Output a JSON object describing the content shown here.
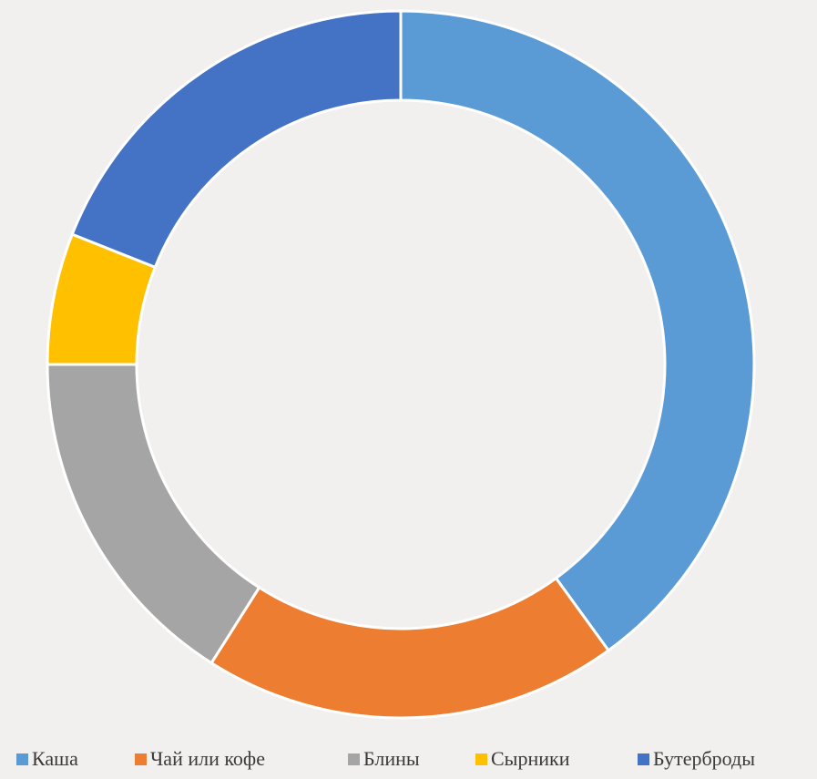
{
  "chart_data": {
    "type": "donut",
    "categories": [
      "Каша",
      "Чай или кофе",
      "Блины",
      "Сырники",
      "Бутерброды"
    ],
    "values": [
      40,
      19,
      16,
      6,
      19
    ],
    "colors": [
      "#5b9bd5",
      "#ed7d31",
      "#a5a5a5",
      "#ffc000",
      "#4472c4"
    ],
    "legend": "bottom"
  }
}
